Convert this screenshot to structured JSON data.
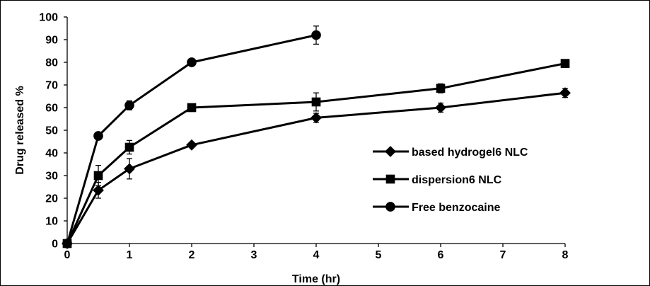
{
  "chart_data": {
    "type": "line",
    "xlabel": "Time (hr)",
    "ylabel": "Drug released %",
    "xlim": [
      0,
      8
    ],
    "ylim": [
      0,
      100
    ],
    "xticks": [
      0,
      1,
      2,
      3,
      4,
      5,
      6,
      7,
      8
    ],
    "yticks": [
      0,
      10,
      20,
      30,
      40,
      50,
      60,
      70,
      80,
      90,
      100
    ],
    "grid": false,
    "legend_position": "right",
    "series": [
      {
        "name": "based hydrogel6 NLC",
        "marker": "diamond",
        "color": "#000000",
        "points": [
          {
            "x": 0,
            "y": 0,
            "err": 0
          },
          {
            "x": 0.5,
            "y": 23.5,
            "err": 3.5
          },
          {
            "x": 1,
            "y": 33,
            "err": 4.5
          },
          {
            "x": 2,
            "y": 43.5,
            "err": 1
          },
          {
            "x": 4,
            "y": 55.5,
            "err": 2
          },
          {
            "x": 6,
            "y": 60,
            "err": 2
          },
          {
            "x": 8,
            "y": 66.5,
            "err": 2
          }
        ]
      },
      {
        "name": "dispersion6 NLC",
        "marker": "square",
        "color": "#000000",
        "points": [
          {
            "x": 0,
            "y": 0,
            "err": 0
          },
          {
            "x": 0.5,
            "y": 30,
            "err": 4.5
          },
          {
            "x": 1,
            "y": 42.5,
            "err": 3
          },
          {
            "x": 2,
            "y": 60,
            "err": 1
          },
          {
            "x": 4,
            "y": 62.5,
            "err": 4
          },
          {
            "x": 6,
            "y": 68.5,
            "err": 2
          },
          {
            "x": 8,
            "y": 79.5,
            "err": 1
          }
        ]
      },
      {
        "name": "Free benzocaine",
        "marker": "circle",
        "color": "#000000",
        "points": [
          {
            "x": 0,
            "y": 0,
            "err": 0
          },
          {
            "x": 0.5,
            "y": 47.5,
            "err": 1
          },
          {
            "x": 1,
            "y": 61,
            "err": 2
          },
          {
            "x": 2,
            "y": 80,
            "err": 1
          },
          {
            "x": 4,
            "y": 92,
            "err": 4
          }
        ]
      }
    ]
  }
}
